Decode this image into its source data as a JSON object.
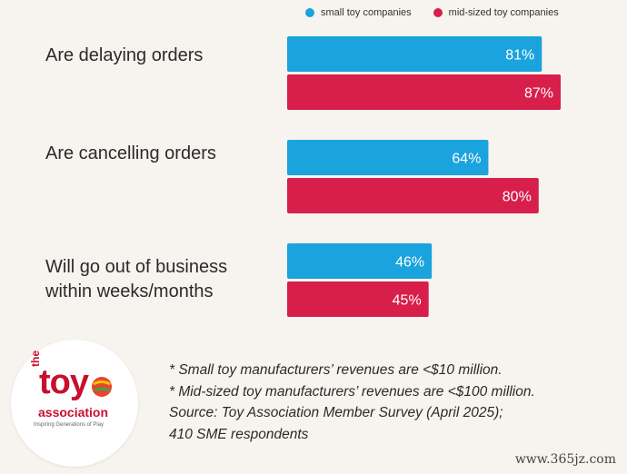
{
  "chart_data": {
    "type": "bar",
    "orientation": "horizontal",
    "categories": [
      "Are delaying orders",
      "Are cancelling orders",
      "Will go out of business within weeks/months"
    ],
    "category_lines": [
      [
        "Are delaying orders"
      ],
      [
        "Are cancelling orders"
      ],
      [
        "Will go out of business",
        "within weeks/months"
      ]
    ],
    "series": [
      {
        "name": "small toy companies",
        "color": "#1aa3dd",
        "values": [
          81,
          64,
          46
        ],
        "labels": [
          "81%",
          "64%",
          "46%"
        ]
      },
      {
        "name": "mid-sized toy companies",
        "color": "#d81e4b",
        "values": [
          87,
          80,
          45
        ],
        "labels": [
          "87%",
          "80%",
          "45%"
        ]
      }
    ],
    "xlim": [
      0,
      100
    ],
    "unit": "%",
    "legend": "top",
    "grid": false
  },
  "notes": [
    "* Small toy manufacturers’ revenues are <$10 million.",
    "* Mid-sized toy manufacturers’  revenues are <$100 million.",
    "Source: Toy Association Member Survey (April 2025);",
    "410 SME respondents"
  ],
  "logo": {
    "the": "the",
    "toy": "toy",
    "association": "association",
    "tagline": "Inspiring Generations of Play"
  },
  "watermark": "www.365jz.com"
}
